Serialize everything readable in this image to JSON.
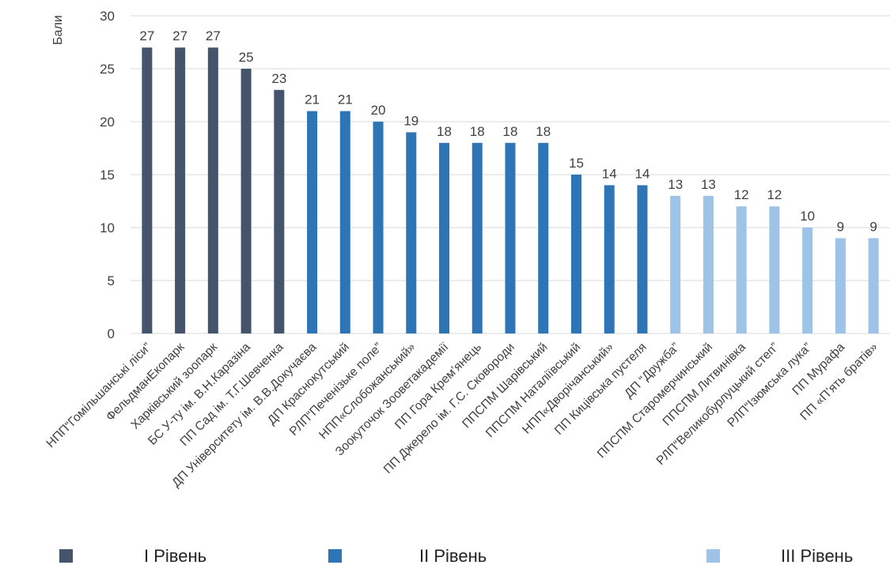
{
  "chart_data": {
    "type": "bar",
    "ylabel": "Бали",
    "ylim": [
      0,
      30
    ],
    "yticks": [
      0,
      5,
      10,
      15,
      20,
      25,
      30
    ],
    "grid": true,
    "legend_position": "bottom",
    "categories": [
      "НПП“Гомільшанські ліси”",
      "ФельдманЕкопарк",
      "Харківський зоопарк",
      "БС У-ту ім. В.Н.Каразіна",
      "ПП  Сад ім. Т.Г.Шевченка",
      "ДП  Університету ім. В.В.Докучаєва",
      "ДП Краснокутський",
      "РЛП“Печенізьке поле”",
      "НПП«Слобожанський»",
      "Зоокуточок Зооветакадемії",
      "ПП Гора Крем’янець",
      "ПП Джерело ім. Г.С. Сковороди",
      "ППСПМ Шарівський",
      "ППСПМ Наталіївський",
      "НПП«Дворічанський»",
      "ПП Кицівська пустеля",
      "ДП “Дружба”",
      "ППСПМ Старомерчинський",
      "ППСПМ Литвинівка",
      "РЛП“Великобурлуцький степ”",
      "РЛП“Ізюмська лука”",
      "ПП Мурафа",
      "ПП «П’ять братів»"
    ],
    "values": [
      27,
      27,
      27,
      25,
      23,
      21,
      21,
      20,
      19,
      18,
      18,
      18,
      18,
      15,
      14,
      14,
      13,
      13,
      12,
      12,
      10,
      9,
      9
    ],
    "levels": [
      1,
      1,
      1,
      1,
      1,
      2,
      2,
      2,
      2,
      2,
      2,
      2,
      2,
      2,
      2,
      2,
      3,
      3,
      3,
      3,
      3,
      3,
      3
    ],
    "series": [
      {
        "name": "I Рівень",
        "color": "#44546a"
      },
      {
        "name": "II Рівень",
        "color": "#2e75b6"
      },
      {
        "name": "III Рівень",
        "color": "#9dc3e6"
      }
    ]
  }
}
